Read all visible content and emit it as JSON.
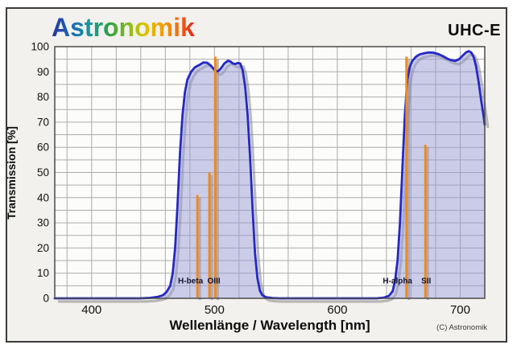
{
  "header": {
    "logo_text": "Astronomik",
    "product_label": "UHC-E"
  },
  "chart_data": {
    "type": "area",
    "xlabel": "Wellenlänge / Wavelength [nm]",
    "ylabel": "Transmission [%]",
    "copyright": "(C) Astronomik",
    "xlim": [
      370,
      720
    ],
    "ylim": [
      0,
      100
    ],
    "x_major_ticks": [
      400,
      500,
      600,
      700
    ],
    "x_grid_step_nm": 20,
    "y_tick_step": 10,
    "y_grid_step": 5,
    "grid": true,
    "series": [
      {
        "name": "UHC-E filter transmission",
        "points": [
          [
            370,
            0
          ],
          [
            440,
            0
          ],
          [
            448,
            0.2
          ],
          [
            454,
            0.6
          ],
          [
            458,
            1.2
          ],
          [
            461,
            2.5
          ],
          [
            464,
            5
          ],
          [
            466,
            10
          ],
          [
            468,
            20
          ],
          [
            470,
            38
          ],
          [
            472,
            58
          ],
          [
            474,
            73
          ],
          [
            476,
            82
          ],
          [
            478,
            87
          ],
          [
            481,
            90
          ],
          [
            484,
            91.8
          ],
          [
            488,
            92.8
          ],
          [
            491,
            93.7
          ],
          [
            494,
            93.6
          ],
          [
            497,
            92.5
          ],
          [
            499,
            91.3
          ],
          [
            501,
            90.2
          ],
          [
            503,
            90.3
          ],
          [
            505,
            91.2
          ],
          [
            508,
            93.3
          ],
          [
            511,
            94.4
          ],
          [
            513,
            94.1
          ],
          [
            515,
            93.3
          ],
          [
            517,
            93.1
          ],
          [
            519,
            93.5
          ],
          [
            521,
            93.3
          ],
          [
            523,
            90.5
          ],
          [
            525,
            84
          ],
          [
            527,
            73
          ],
          [
            529,
            56
          ],
          [
            531,
            36
          ],
          [
            533,
            18
          ],
          [
            535,
            8
          ],
          [
            537,
            3
          ],
          [
            539,
            1.2
          ],
          [
            542,
            0.4
          ],
          [
            547,
            0.1
          ],
          [
            553,
            0
          ],
          [
            632,
            0
          ],
          [
            638,
            0.3
          ],
          [
            642,
            1
          ],
          [
            645,
            2.8
          ],
          [
            647,
            7
          ],
          [
            649,
            15
          ],
          [
            651,
            30
          ],
          [
            653,
            52
          ],
          [
            655,
            73
          ],
          [
            657,
            87
          ],
          [
            659,
            92
          ],
          [
            661,
            94.3
          ],
          [
            664,
            96
          ],
          [
            667,
            96.9
          ],
          [
            670,
            97.3
          ],
          [
            674,
            97.7
          ],
          [
            678,
            97.6
          ],
          [
            682,
            97.1
          ],
          [
            686,
            96.2
          ],
          [
            690,
            95.1
          ],
          [
            693,
            94.6
          ],
          [
            696,
            94.3
          ],
          [
            699,
            95
          ],
          [
            702,
            96.4
          ],
          [
            705,
            97.8
          ],
          [
            707,
            98.2
          ],
          [
            709,
            97.7
          ],
          [
            711,
            95.8
          ],
          [
            713,
            92
          ],
          [
            715,
            86
          ],
          [
            717,
            79
          ],
          [
            719,
            72.5
          ],
          [
            720,
            69
          ]
        ]
      }
    ],
    "emission_lines": [
      {
        "name": "H-beta",
        "wavelength_nm": 486.1,
        "peak_percent": 41,
        "label": "H-beta",
        "label_wl": 480.5
      },
      {
        "name": "OIII-496",
        "wavelength_nm": 495.9,
        "peak_percent": 50,
        "label": "",
        "label_wl": null
      },
      {
        "name": "OIII-501",
        "wavelength_nm": 500.7,
        "peak_percent": 96,
        "label": "OIII",
        "label_wl": 499.5
      },
      {
        "name": "H-alpha",
        "wavelength_nm": 656.3,
        "peak_percent": 96,
        "label": "H-alpha",
        "label_wl": 649.0
      },
      {
        "name": "SII",
        "wavelength_nm": 671.7,
        "peak_percent": 61,
        "label": "SII",
        "label_wl": 672.3
      }
    ],
    "emission_label_percent_height": 6.8
  },
  "colors": {
    "curve_stroke": "#2428c6",
    "curve_fill": "rgba(148,153,214,0.48)",
    "emission_line": "#f08a18",
    "shadow": "rgba(110,110,110,0.45)",
    "grid": "#ababab",
    "plot_background": "#fcfcfa",
    "plot_border": "#4a4a4a",
    "tick_label": "#111111",
    "emission_label": "#14142e"
  }
}
